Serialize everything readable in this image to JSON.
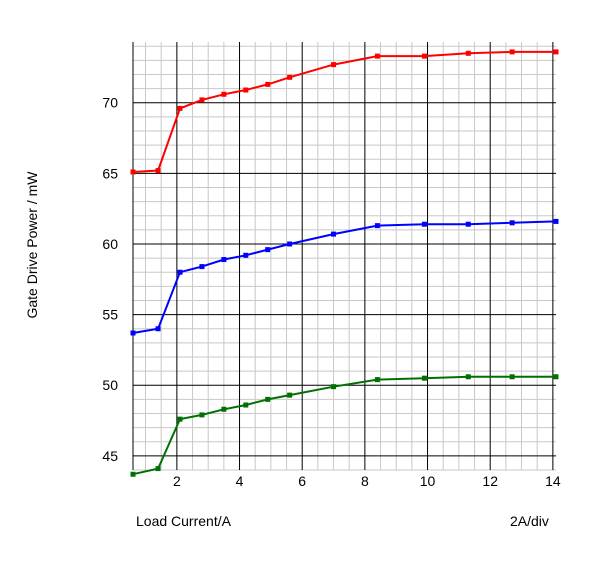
{
  "chart_data": {
    "type": "line",
    "title": "",
    "xlabel": "Load Current/A",
    "ylabel": "Gate Drive Power / mW",
    "x_scale_note": "2A/div",
    "xlim": [
      0.6,
      14.1
    ],
    "ylim": [
      44,
      74.3
    ],
    "x_ticks": [
      2,
      4,
      6,
      8,
      10,
      12,
      14
    ],
    "y_ticks": [
      45,
      50,
      55,
      60,
      65,
      70
    ],
    "grid": true,
    "minor_grid": true,
    "legend": "none",
    "series": [
      {
        "color": "#ff0000",
        "x": [
          0.6,
          1.4,
          2.1,
          2.8,
          3.5,
          4.2,
          4.9,
          5.6,
          7.0,
          8.4,
          9.9,
          11.3,
          12.7,
          14.1
        ],
        "y": [
          65.1,
          65.2,
          69.6,
          70.2,
          70.6,
          70.9,
          71.3,
          71.8,
          72.7,
          73.3,
          73.3,
          73.5,
          73.6,
          73.6
        ]
      },
      {
        "color": "#0000ff",
        "x": [
          0.6,
          1.4,
          2.1,
          2.8,
          3.5,
          4.2,
          4.9,
          5.6,
          7.0,
          8.4,
          9.9,
          11.3,
          12.7,
          14.1
        ],
        "y": [
          53.7,
          54.0,
          58.0,
          58.4,
          58.9,
          59.2,
          59.6,
          60.0,
          60.7,
          61.3,
          61.4,
          61.4,
          61.5,
          61.6
        ]
      },
      {
        "color": "#007000",
        "x": [
          0.6,
          1.4,
          2.1,
          2.8,
          3.5,
          4.2,
          4.9,
          5.6,
          7.0,
          8.4,
          9.9,
          11.3,
          12.7,
          14.1
        ],
        "y": [
          43.7,
          44.1,
          47.6,
          47.9,
          48.3,
          48.6,
          49.0,
          49.3,
          49.9,
          50.4,
          50.5,
          50.6,
          50.6,
          50.6
        ]
      }
    ]
  }
}
